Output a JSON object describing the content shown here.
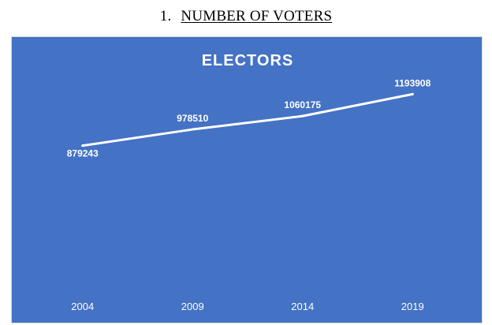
{
  "heading": {
    "number": "1.",
    "text": "NUMBER OF VOTERS"
  },
  "chart_data": {
    "type": "line",
    "title": "ELECTORS",
    "categories": [
      "2004",
      "2009",
      "2014",
      "2019"
    ],
    "values": [
      879243,
      978510,
      1060175,
      1193908
    ],
    "xlabel": "",
    "ylabel": "",
    "ylim": [
      0,
      1350000
    ],
    "grid": false,
    "legend": "none",
    "data_labels": true,
    "drop_lines": true,
    "colors": {
      "background": "#4472c4",
      "line": "#ffffff",
      "text": "#ffffff"
    }
  }
}
